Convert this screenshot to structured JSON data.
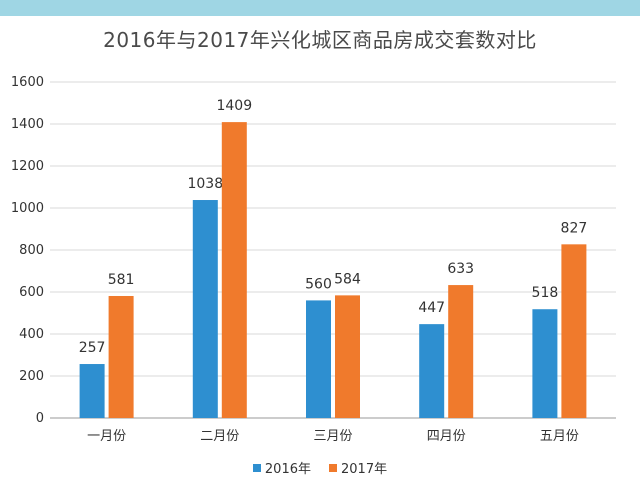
{
  "chart_data": {
    "type": "bar",
    "title": "2016年与2017年兴化城区商品房成交套数对比",
    "categories": [
      "一月份",
      "二月份",
      "三月份",
      "四月份",
      "五月份"
    ],
    "series": [
      {
        "name": "2016年",
        "color": "#2e8fd0",
        "values": [
          257,
          1038,
          560,
          447,
          518
        ]
      },
      {
        "name": "2017年",
        "color": "#f07a2c",
        "values": [
          581,
          1409,
          584,
          633,
          827
        ]
      }
    ],
    "yticks": [
      "0",
      "200",
      "400",
      "600",
      "800",
      "1000",
      "1200",
      "1400",
      "1600"
    ],
    "ylim": [
      0,
      1600
    ],
    "grid": true,
    "legend": "bottom"
  }
}
